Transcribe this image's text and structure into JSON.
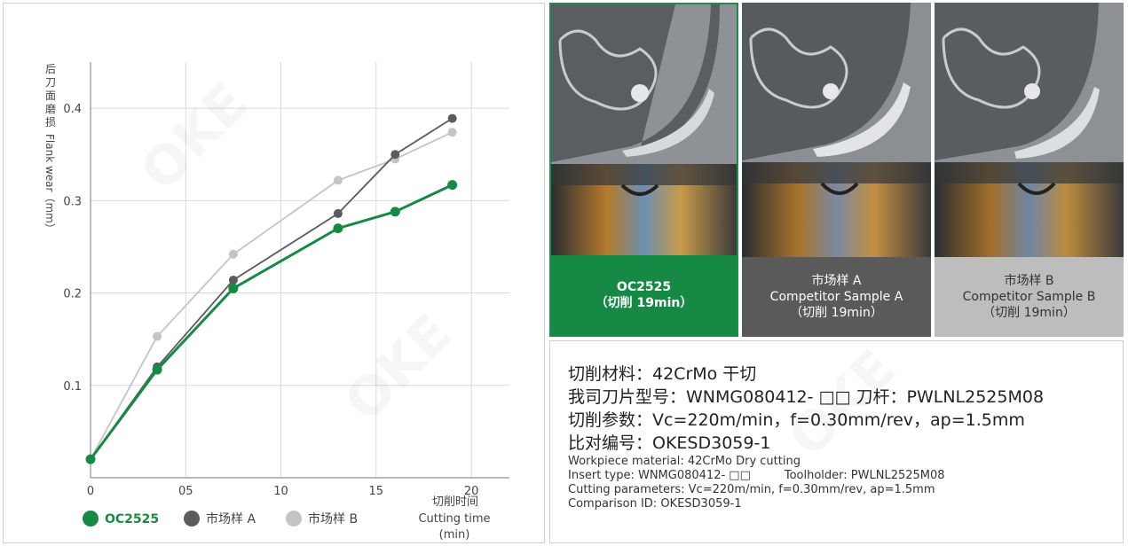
{
  "chart_data": {
    "type": "line",
    "title": "",
    "ylabel": "后刀面磨损 Flank wear（mm）",
    "xlabel_cn": "切削时间",
    "xlabel_en": "Cutting time",
    "xlabel_unit": "(min)",
    "xlim": [
      0,
      22
    ],
    "ylim": [
      0,
      0.45
    ],
    "x_ticks": [
      0,
      5,
      10,
      15,
      20
    ],
    "x_tick_labels": [
      "0",
      "05",
      "10",
      "15",
      "20"
    ],
    "y_ticks": [
      0.1,
      0.2,
      0.3,
      0.4
    ],
    "y_tick_labels": [
      "0.1",
      "0.2",
      "0.3",
      "0.4"
    ],
    "grid": true,
    "legend_position": "bottom",
    "series": [
      {
        "name": "市场样 B",
        "color": "#c4c4c4",
        "x": [
          0,
          3.5,
          7.5,
          13,
          16,
          19
        ],
        "y": [
          0.02,
          0.153,
          0.242,
          0.322,
          0.345,
          0.374
        ]
      },
      {
        "name": "市场样 A",
        "color": "#5b5b5b",
        "x": [
          0,
          3.5,
          7.5,
          13,
          16,
          19
        ],
        "y": [
          0.02,
          0.12,
          0.214,
          0.286,
          0.35,
          0.389
        ]
      },
      {
        "name": "OC2525",
        "color": "#168a45",
        "x": [
          0,
          3.5,
          7.5,
          13,
          16,
          19
        ],
        "y": [
          0.02,
          0.117,
          0.205,
          0.27,
          0.288,
          0.317
        ]
      }
    ]
  },
  "legend": {
    "item1": "OC2525",
    "item2": "市场样 A",
    "item3": "市场样 B"
  },
  "photos": [
    {
      "line1": "OC2525",
      "line2": "",
      "line3": "（切削 19min）"
    },
    {
      "line1": "市场样 A",
      "line2": "Competitor Sample A",
      "line3": "（切削 19min）"
    },
    {
      "line1": "市场样 B",
      "line2": "Competitor Sample B",
      "line3": "（切削 19min）"
    }
  ],
  "info": {
    "cn1": "切削材料：42CrMo  干切",
    "cn2": "我司刀片型号：WNMG080412- □□  刀杆：PWLNL2525M08",
    "cn3": "切削参数：Vc=220m/min，f=0.30mm/rev，ap=1.5mm",
    "cn4": "比对编号：OKESD3059-1",
    "en1": "Workpiece material: 42CrMo Dry cutting",
    "en2a": "Insert type: WNMG080412- □□",
    "en2b": "Toolholder: PWLNL2525M08",
    "en3": "Cutting parameters: Vc=220m/min, f=0.30mm/rev, ap=1.5mm",
    "en4": "Comparison ID: OKESD3059-1"
  },
  "watermark": "OKE"
}
